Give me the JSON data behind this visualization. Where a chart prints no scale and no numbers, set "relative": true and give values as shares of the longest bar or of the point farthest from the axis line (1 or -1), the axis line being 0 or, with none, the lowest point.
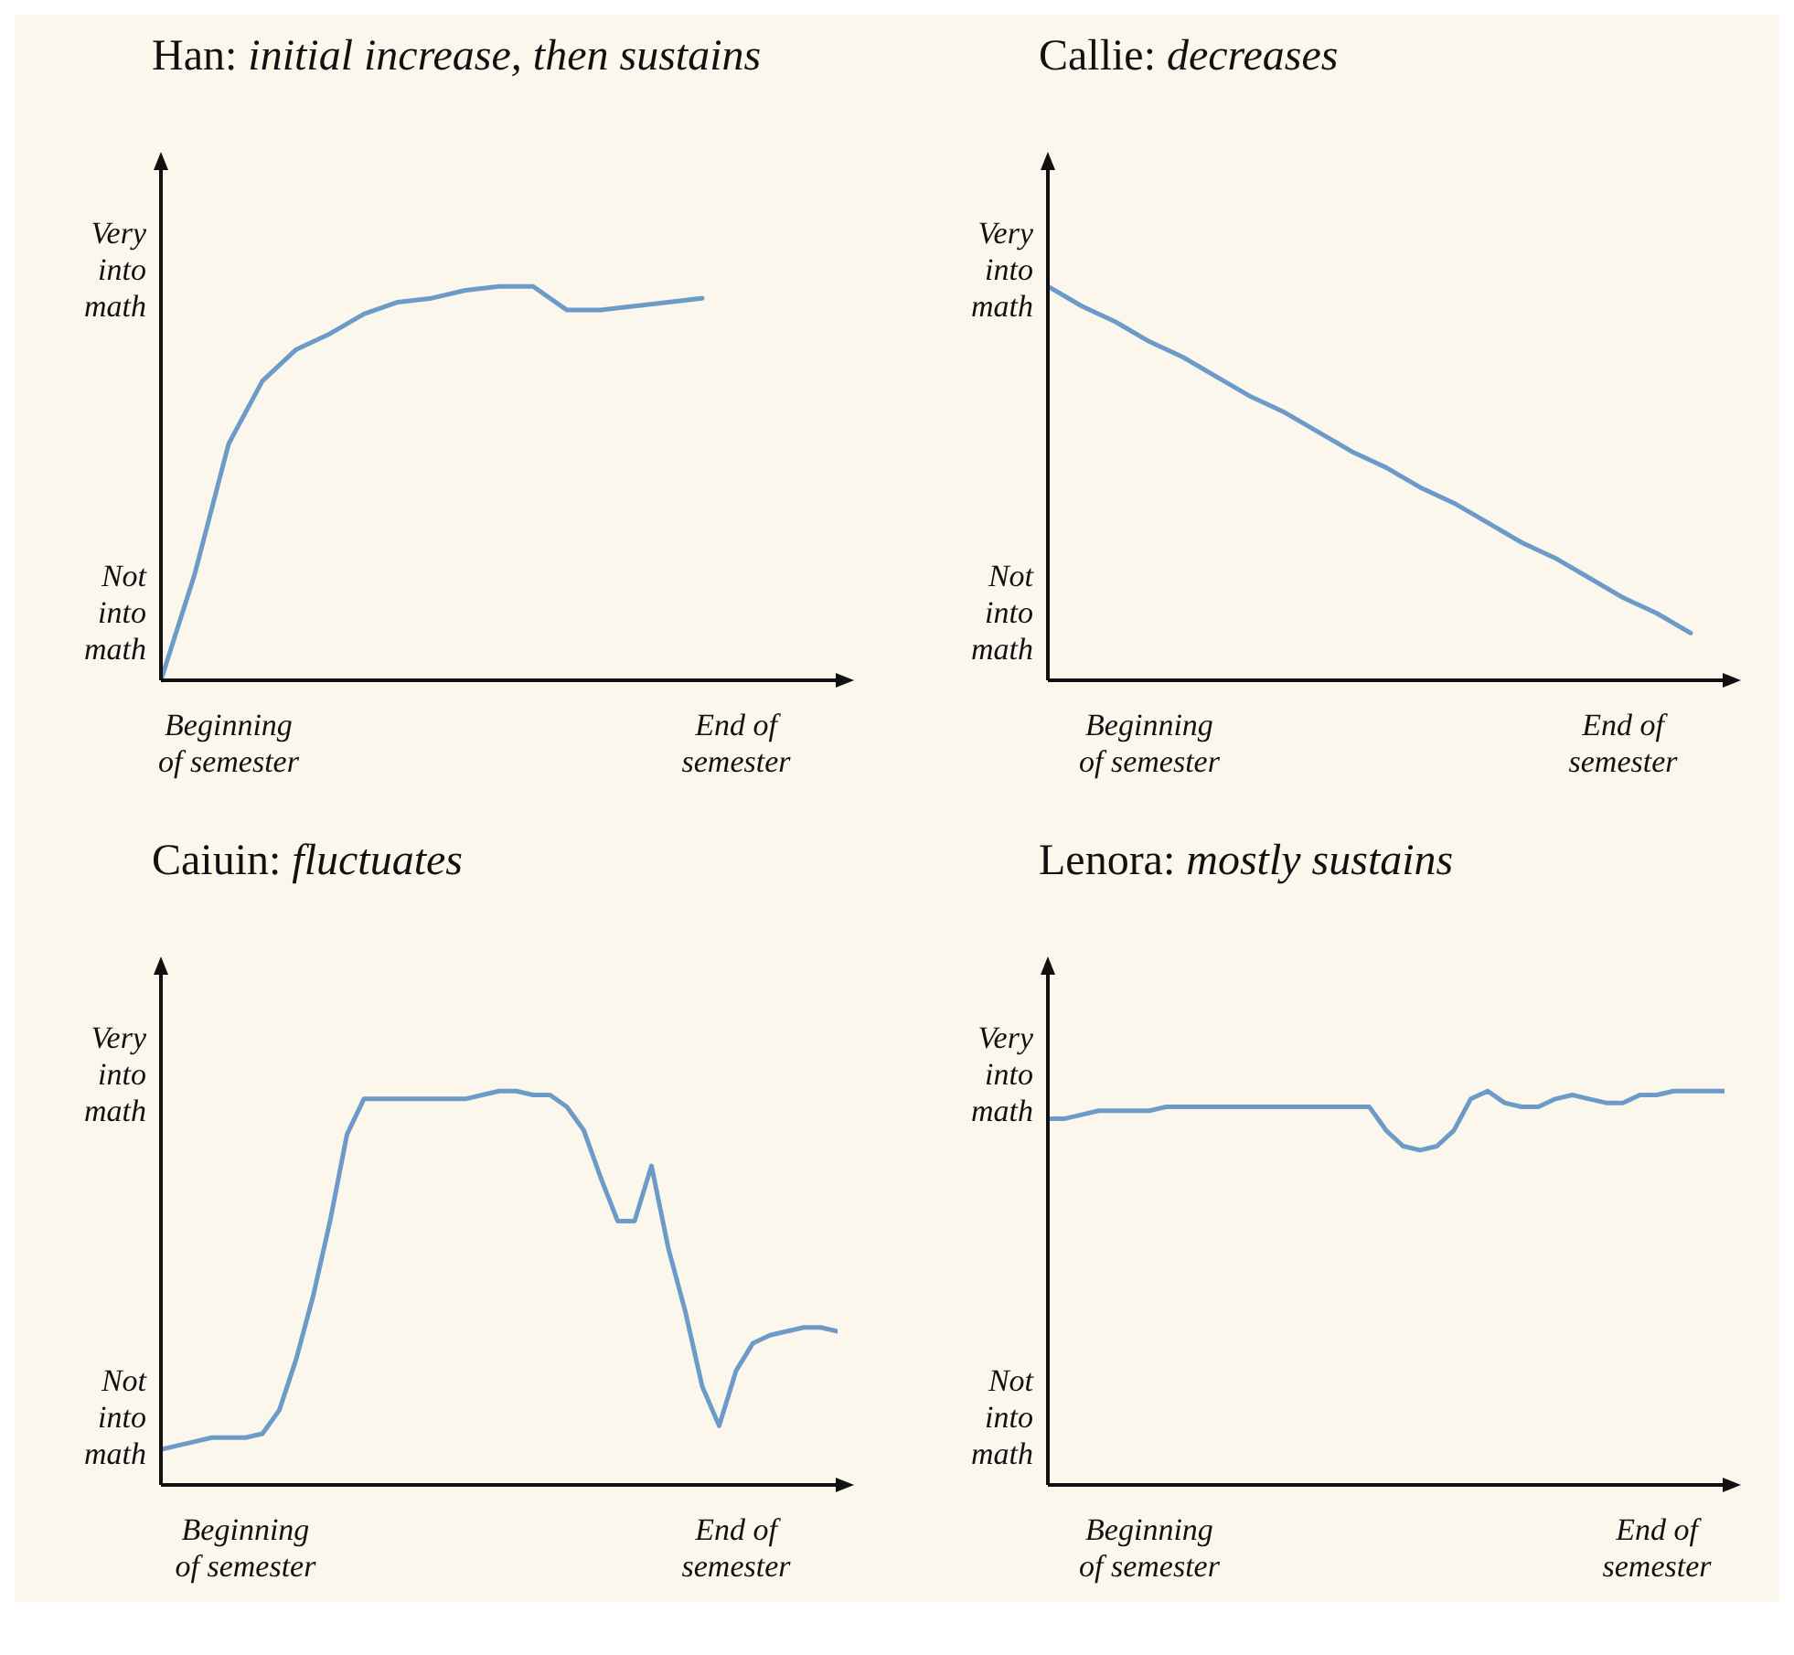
{
  "chart_data": [
    {
      "type": "line",
      "title": "Han: initial increase, then sustains",
      "relative": true,
      "grid": false,
      "annotations": [
        "Very into math",
        "Not into math"
      ],
      "categories": [
        null,
        null,
        "Beginning of semester",
        null,
        null,
        null,
        null,
        null,
        null,
        null,
        null,
        null,
        null,
        null,
        null,
        null,
        null,
        "End of semester",
        null,
        null,
        null
      ],
      "series": [
        {
          "color": "#6d9bc9",
          "values": [
            0,
            0.27,
            0.6,
            0.76,
            0.84,
            0.88,
            0.93,
            0.96,
            0.97,
            0.99,
            1.0,
            1.0,
            0.94,
            0.94,
            0.95,
            0.96,
            0.97,
            null,
            null,
            null,
            null
          ]
        }
      ]
    },
    {
      "type": "line",
      "title": "Callie: decreases",
      "relative": true,
      "grid": false,
      "annotations": [
        "Very into math",
        "Not into math"
      ],
      "categories": [
        null,
        null,
        null,
        "Beginning of semester",
        null,
        null,
        null,
        null,
        null,
        null,
        null,
        null,
        null,
        null,
        null,
        null,
        null,
        "End of semester",
        null,
        null,
        null
      ],
      "series": [
        {
          "color": "#6d9bc9",
          "values": [
            1,
            0.95,
            0.91,
            0.86,
            0.82,
            0.77,
            0.72,
            0.68,
            0.63,
            0.58,
            0.54,
            0.49,
            0.45,
            0.4,
            0.35,
            0.31,
            0.26,
            0.21,
            0.17,
            0.12,
            null
          ]
        }
      ]
    },
    {
      "type": "line",
      "title": "Caiuin: fluctuates",
      "relative": true,
      "grid": false,
      "annotations": [
        "Very into math",
        "Not into math"
      ],
      "categories": [
        null,
        null,
        null,
        null,
        null,
        "Beginning of semester",
        null,
        null,
        null,
        null,
        null,
        null,
        null,
        null,
        null,
        null,
        null,
        null,
        null,
        null,
        null,
        null,
        null,
        null,
        null,
        null,
        null,
        null,
        null,
        null,
        null,
        null,
        null,
        null,
        "End of semester",
        null,
        null,
        null,
        null,
        null,
        null
      ],
      "series": [
        {
          "color": "#6d9bc9",
          "values": [
            0.09,
            0.1,
            0.11,
            0.12,
            0.12,
            0.12,
            0.13,
            0.19,
            0.32,
            0.48,
            0.67,
            0.89,
            0.98,
            0.98,
            0.98,
            0.98,
            0.98,
            0.98,
            0.98,
            0.99,
            1.0,
            1.0,
            0.99,
            0.99,
            0.96,
            0.9,
            0.78,
            0.67,
            0.67,
            0.81,
            0.6,
            0.44,
            0.25,
            0.15,
            0.29,
            0.36,
            0.38,
            0.39,
            0.4,
            0.4,
            0.39
          ]
        }
      ]
    },
    {
      "type": "line",
      "title": "Lenora: mostly sustains",
      "relative": true,
      "grid": false,
      "annotations": [
        "Very into math",
        "Not into math"
      ],
      "categories": [
        null,
        null,
        null,
        null,
        null,
        null,
        "Beginning of semester",
        null,
        null,
        null,
        null,
        null,
        null,
        null,
        null,
        null,
        null,
        null,
        null,
        null,
        null,
        null,
        null,
        null,
        null,
        null,
        null,
        null,
        null,
        null,
        null,
        null,
        null,
        null,
        null,
        null,
        "End of semester",
        null,
        null,
        null,
        null
      ],
      "series": [
        {
          "color": "#6d9bc9",
          "values": [
            0.93,
            0.93,
            0.94,
            0.95,
            0.95,
            0.95,
            0.95,
            0.96,
            0.96,
            0.96,
            0.96,
            0.96,
            0.96,
            0.96,
            0.96,
            0.96,
            0.96,
            0.96,
            0.96,
            0.96,
            0.9,
            0.86,
            0.85,
            0.86,
            0.9,
            0.98,
            1.0,
            0.97,
            0.96,
            0.96,
            0.98,
            0.99,
            0.98,
            0.97,
            0.97,
            0.99,
            0.99,
            1.0,
            1.0,
            1.0,
            1.0
          ]
        }
      ]
    }
  ]
}
